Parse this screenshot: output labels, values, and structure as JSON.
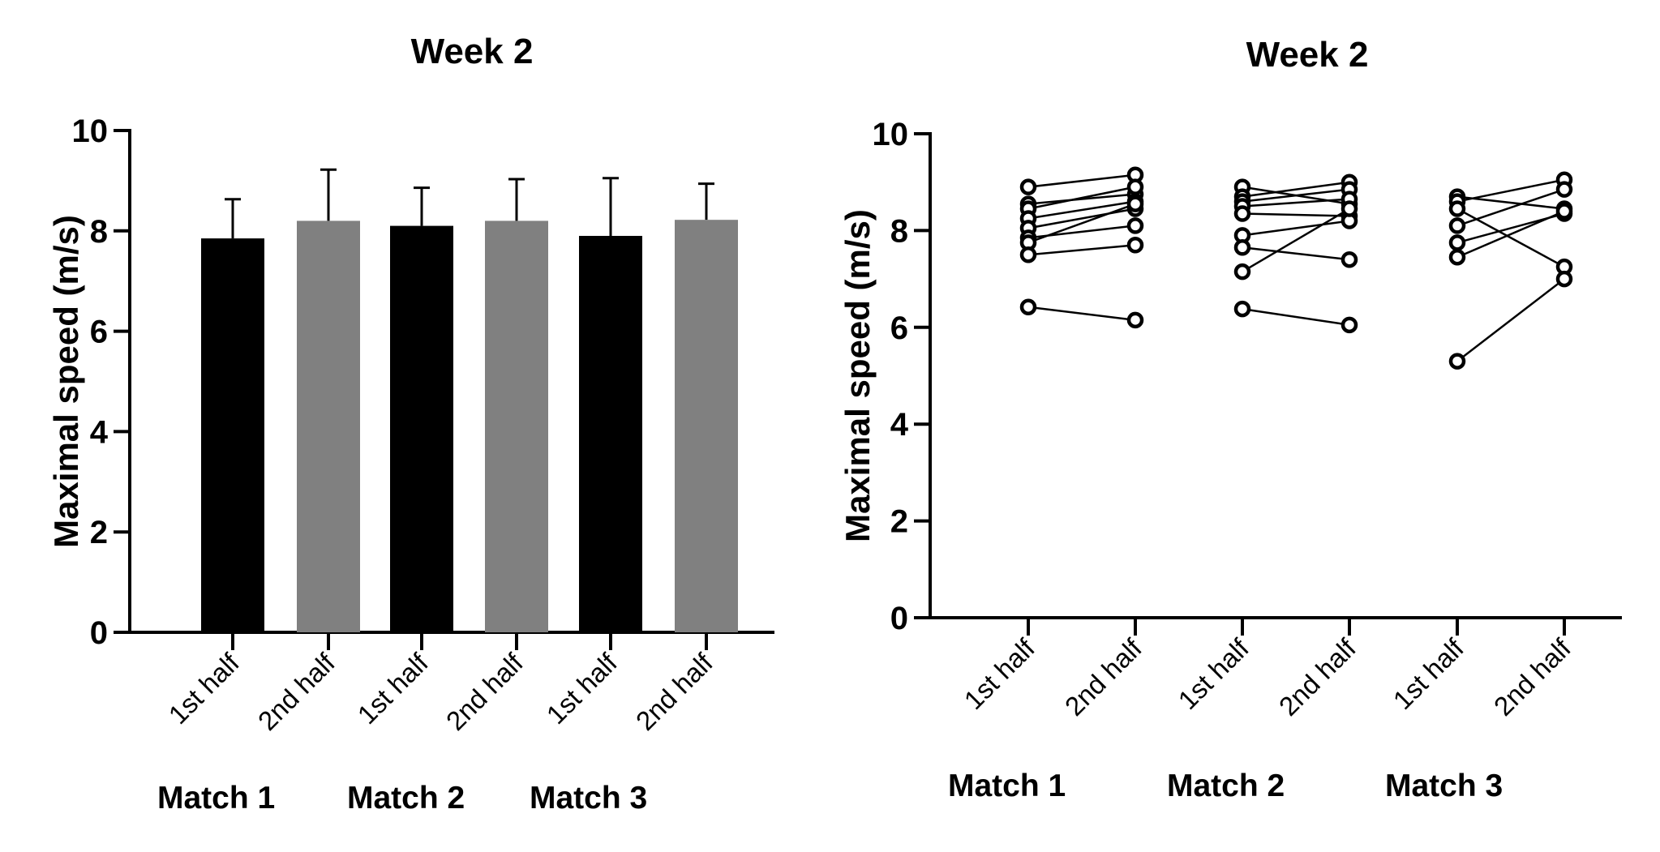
{
  "chart_data": [
    {
      "type": "bar",
      "title": "Week 2",
      "ylabel": "Maximal speed (m/s)",
      "ylim": [
        0,
        10
      ],
      "yticks": [
        0,
        2,
        4,
        6,
        8,
        10
      ],
      "categories": [
        "1st half",
        "2nd half",
        "1st half",
        "2nd half",
        "1st half",
        "2nd half"
      ],
      "groups": [
        "Match 1",
        "Match 2",
        "Match 3"
      ],
      "values": [
        7.85,
        8.2,
        8.1,
        8.2,
        7.9,
        8.22
      ],
      "error_sd": [
        0.78,
        1.02,
        0.76,
        0.83,
        1.15,
        0.72
      ],
      "colors": [
        "#000000",
        "#808080",
        "#000000",
        "#808080",
        "#000000",
        "#808080"
      ],
      "grid": false
    },
    {
      "type": "scatter",
      "title": "Week 2",
      "ylabel": "Maximal speed (m/s)",
      "ylim": [
        0,
        10
      ],
      "yticks": [
        0,
        2,
        4,
        6,
        8,
        10
      ],
      "categories": [
        "1st half",
        "2nd half",
        "1st half",
        "2nd half",
        "1st half",
        "2nd half"
      ],
      "groups": [
        "Match 1",
        "Match 2",
        "Match 3"
      ],
      "paired": true,
      "grid": false,
      "matches": [
        {
          "name": "Match 1",
          "pairs": [
            [
              8.9,
              9.15
            ],
            [
              8.55,
              8.75
            ],
            [
              8.45,
              8.9
            ],
            [
              8.25,
              8.6
            ],
            [
              8.05,
              8.45
            ],
            [
              7.85,
              8.1
            ],
            [
              7.75,
              8.55
            ],
            [
              7.5,
              7.7
            ],
            [
              6.42,
              6.15
            ]
          ]
        },
        {
          "name": "Match 2",
          "pairs": [
            [
              8.9,
              8.55
            ],
            [
              8.7,
              9.0
            ],
            [
              8.6,
              8.85
            ],
            [
              8.5,
              8.65
            ],
            [
              8.35,
              8.3
            ],
            [
              7.9,
              8.2
            ],
            [
              7.65,
              7.4
            ],
            [
              7.15,
              8.45
            ],
            [
              6.38,
              6.05
            ]
          ]
        },
        {
          "name": "Match 3",
          "pairs": [
            [
              8.7,
              8.45
            ],
            [
              8.6,
              9.05
            ],
            [
              8.45,
              7.25
            ],
            [
              8.1,
              8.85
            ],
            [
              7.75,
              8.35
            ],
            [
              7.45,
              8.4
            ],
            [
              5.3,
              7.0
            ]
          ]
        }
      ]
    }
  ]
}
